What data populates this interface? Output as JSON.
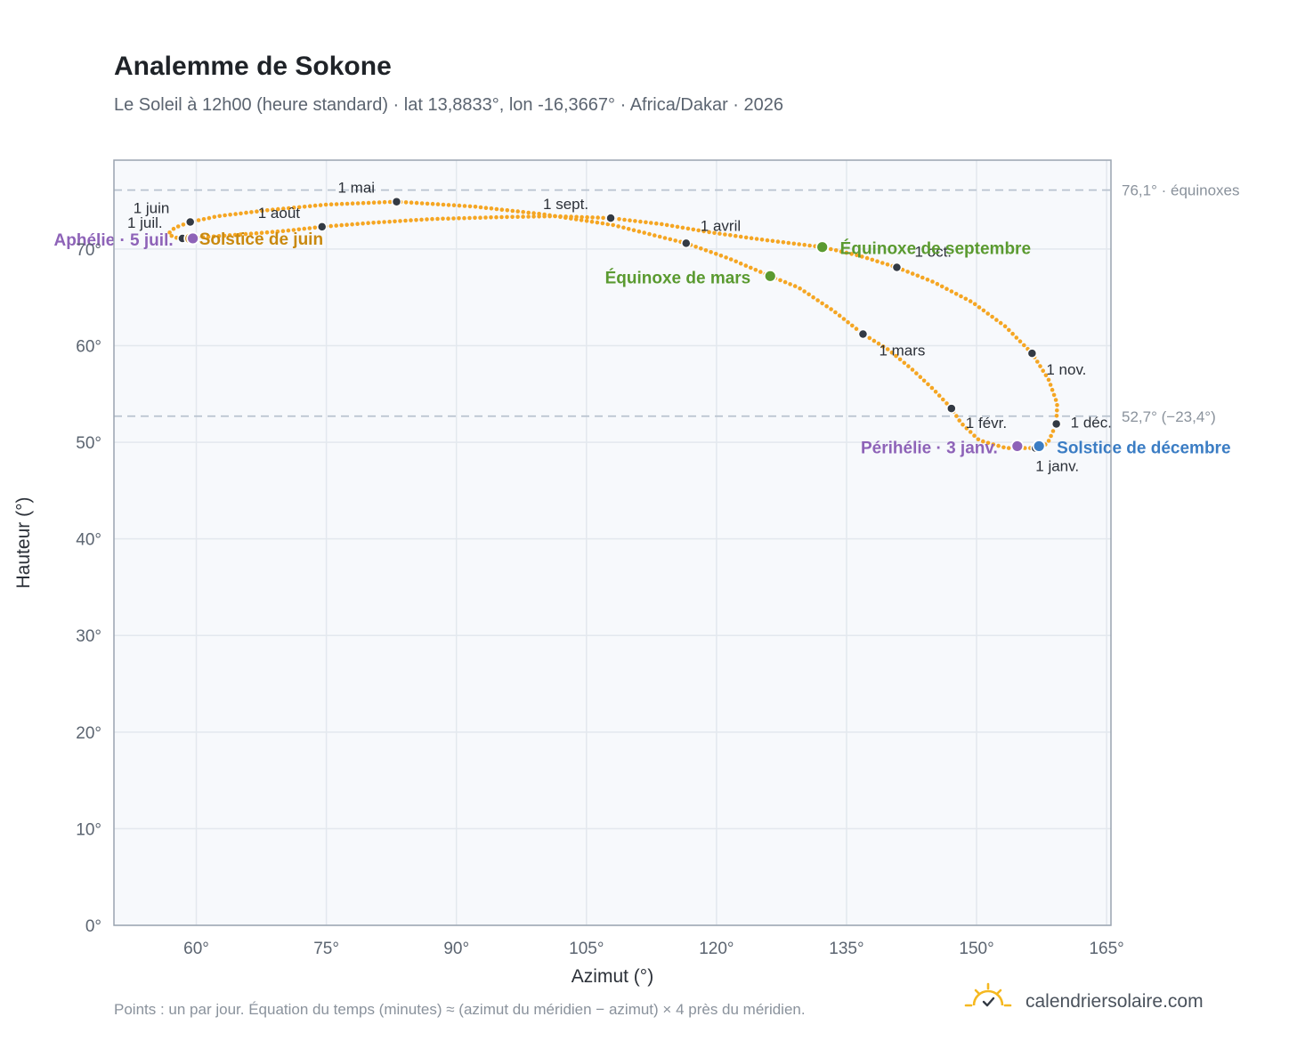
{
  "header": {
    "title": "Analemme de Sokone",
    "subtitle": "Le Soleil à 12h00 (heure standard) · lat 13,8833°, lon -16,3667° · Africa/Dakar · 2026"
  },
  "footer": {
    "note": "Points : un par jour. Équation du temps (minutes) ≈ (azimut du méridien − azimut) × 4 près du méridien.",
    "brand": "calendriersolaire.com",
    "logo_icon": "sun-check-icon"
  },
  "colors": {
    "curve": "#f5a623",
    "month_dot": "#333a44",
    "equinox": "#5a9a30",
    "solstice_june": "#c9890f",
    "solstice_december": "#3b7dc4",
    "perihelion_aphelion": "#8e63b8",
    "reference_line": "#b9c3cf",
    "plot_background": "#f7f9fc",
    "grid": "#e3e8ee",
    "frame": "#9aa4b0"
  },
  "chart_data": {
    "type": "scatter",
    "xlabel": "Azimut (°)",
    "ylabel": "Hauteur (°)",
    "xlim": [
      50.5,
      165.5
    ],
    "ylim": [
      0,
      79.2
    ],
    "x_ticks": [
      60,
      75,
      90,
      105,
      120,
      135,
      150,
      165
    ],
    "x_tick_labels": [
      "60°",
      "75°",
      "90°",
      "105°",
      "120°",
      "135°",
      "150°",
      "165°"
    ],
    "y_ticks": [
      0,
      10,
      20,
      30,
      40,
      50,
      60,
      70
    ],
    "y_tick_labels": [
      "0°",
      "10°",
      "20°",
      "30°",
      "40°",
      "50°",
      "60°",
      "70°"
    ],
    "grid": true,
    "reference_lines": [
      {
        "y": 76.1,
        "label": "76,1° · équinoxes"
      },
      {
        "y": 52.7,
        "label": "52,7° (−23,4°)"
      }
    ],
    "month_starts": [
      {
        "label": "1 janv.",
        "x": 156.8,
        "y": 49.4
      },
      {
        "label": "1 févr.",
        "x": 147.1,
        "y": 53.5
      },
      {
        "label": "1 mars",
        "x": 136.9,
        "y": 61.2
      },
      {
        "label": "1 avril",
        "x": 116.5,
        "y": 70.6
      },
      {
        "label": "1 mai",
        "x": 83.1,
        "y": 74.9
      },
      {
        "label": "1 juin",
        "x": 59.3,
        "y": 72.8
      },
      {
        "label": "1 juil.",
        "x": 58.4,
        "y": 71.1
      },
      {
        "label": "1 août",
        "x": 74.5,
        "y": 72.3
      },
      {
        "label": "1 sept.",
        "x": 107.8,
        "y": 73.2
      },
      {
        "label": "1 oct.",
        "x": 140.8,
        "y": 68.1
      },
      {
        "label": "1 nov.",
        "x": 156.4,
        "y": 59.2
      },
      {
        "label": "1 déc.",
        "x": 159.2,
        "y": 51.9
      }
    ],
    "events": [
      {
        "label": "Équinoxe de mars",
        "x": 126.2,
        "y": 67.2,
        "kind": "equinox"
      },
      {
        "label": "Solstice de juin",
        "x": 59.3,
        "y": 71.1,
        "kind": "solstice_june"
      },
      {
        "label": "Équinoxe de septembre",
        "x": 132.2,
        "y": 70.2,
        "kind": "equinox"
      },
      {
        "label": "Solstice de décembre",
        "x": 157.2,
        "y": 49.6,
        "kind": "solstice_december"
      },
      {
        "label": "Périhélie · 3 janv.",
        "x": 154.7,
        "y": 49.6,
        "kind": "perihelion_aphelion"
      },
      {
        "label": "Aphélie · 5 juil.",
        "x": 59.6,
        "y": 71.1,
        "kind": "perihelion_aphelion"
      }
    ],
    "daily_path": [
      [
        156.8,
        49.4
      ],
      [
        153.4,
        49.4
      ],
      [
        150.3,
        50.2
      ],
      [
        148.2,
        52.0
      ],
      [
        147.1,
        53.5
      ],
      [
        145.0,
        55.5
      ],
      [
        142.5,
        57.6
      ],
      [
        139.8,
        59.6
      ],
      [
        136.9,
        61.2
      ],
      [
        133.5,
        63.6
      ],
      [
        129.5,
        66.0
      ],
      [
        126.2,
        67.2
      ],
      [
        121.5,
        69.0
      ],
      [
        116.5,
        70.6
      ],
      [
        108.0,
        72.5
      ],
      [
        100.0,
        73.6
      ],
      [
        92.0,
        74.4
      ],
      [
        83.1,
        74.9
      ],
      [
        75.0,
        74.6
      ],
      [
        68.0,
        74.0
      ],
      [
        62.5,
        73.4
      ],
      [
        59.3,
        72.8
      ],
      [
        57.5,
        72.2
      ],
      [
        56.8,
        71.6
      ],
      [
        57.4,
        71.2
      ],
      [
        58.4,
        71.1
      ],
      [
        62.0,
        71.3
      ],
      [
        66.5,
        71.6
      ],
      [
        70.5,
        71.9
      ],
      [
        74.5,
        72.3
      ],
      [
        80.0,
        72.7
      ],
      [
        87.0,
        73.1
      ],
      [
        95.0,
        73.3
      ],
      [
        101.5,
        73.4
      ],
      [
        107.8,
        73.2
      ],
      [
        113.5,
        72.6
      ],
      [
        119.5,
        71.7
      ],
      [
        125.0,
        71.0
      ],
      [
        132.2,
        70.2
      ],
      [
        136.5,
        69.3
      ],
      [
        140.8,
        68.1
      ],
      [
        145.0,
        66.6
      ],
      [
        149.5,
        64.5
      ],
      [
        153.3,
        62.0
      ],
      [
        156.4,
        59.2
      ],
      [
        158.3,
        56.5
      ],
      [
        159.3,
        54.0
      ],
      [
        159.2,
        51.9
      ],
      [
        158.2,
        49.9
      ],
      [
        157.2,
        49.4
      ],
      [
        156.8,
        49.4
      ]
    ]
  }
}
